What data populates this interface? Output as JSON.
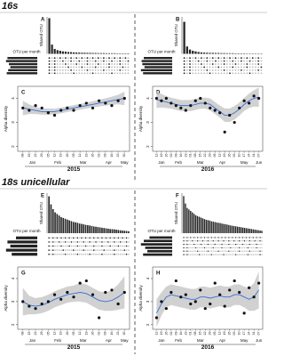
{
  "figure": {
    "sections": [
      "16s",
      "18s unicellular"
    ],
    "years": [
      "2015",
      "2016"
    ]
  },
  "chart_data": [
    {
      "type": "upset",
      "title": "A",
      "ylabel": "Shared OTU",
      "xlabel": "OTU per month",
      "ylim": [
        0,
        300
      ],
      "color": "#222222",
      "values": [
        290,
        75,
        40,
        30,
        25,
        20,
        18,
        15,
        14,
        12,
        11,
        10,
        9,
        9,
        8,
        8,
        7,
        7,
        6,
        6,
        6,
        5,
        5,
        5,
        5,
        4,
        4,
        4,
        4,
        4
      ],
      "set_values": [
        420,
        440,
        400,
        380,
        410,
        430
      ],
      "set_lim": [
        0,
        450
      ]
    },
    {
      "type": "upset",
      "title": "B",
      "ylabel": "Shared OTU",
      "xlabel": "OTU per month",
      "ylim": [
        0,
        300
      ],
      "color": "#222222",
      "values": [
        260,
        60,
        35,
        25,
        20,
        15,
        12,
        10,
        9,
        8,
        8,
        7,
        7,
        6,
        6,
        5,
        5,
        5,
        4,
        4,
        4,
        4,
        3,
        3,
        3,
        3,
        3,
        3
      ],
      "set_values": [
        400,
        430,
        420,
        390,
        440,
        410
      ],
      "set_lim": [
        0,
        450
      ]
    },
    {
      "type": "scatter",
      "title": "C",
      "ylabel": "Alpha diversity",
      "xlabel": "2015",
      "ylim": [
        1.8,
        4.5
      ],
      "yticks": [
        2,
        3,
        4
      ],
      "xlim": [
        -0.8,
        16.8
      ],
      "color": "#111111",
      "line_color": "#3b6fd4",
      "x": [
        0,
        1,
        2,
        3,
        4,
        5,
        6,
        7,
        8,
        9,
        10,
        11,
        12,
        13,
        14,
        15,
        16
      ],
      "values": [
        3.6,
        3.5,
        3.7,
        3.6,
        3.4,
        3.3,
        3.5,
        3.6,
        3.5,
        3.7,
        3.8,
        3.6,
        3.9,
        3.8,
        3.7,
        3.9,
        4.0
      ],
      "trend": [
        3.6,
        3.55,
        3.5,
        3.45,
        3.45,
        3.45,
        3.5,
        3.55,
        3.6,
        3.65,
        3.7,
        3.75,
        3.8,
        3.85,
        3.9,
        3.95,
        4.0
      ],
      "band_low": [
        3.3,
        3.35,
        3.35,
        3.32,
        3.32,
        3.33,
        3.38,
        3.43,
        3.48,
        3.53,
        3.58,
        3.62,
        3.66,
        3.7,
        3.73,
        3.75,
        3.72
      ],
      "band_high": [
        3.9,
        3.75,
        3.65,
        3.58,
        3.58,
        3.57,
        3.62,
        3.67,
        3.72,
        3.77,
        3.82,
        3.88,
        3.94,
        4.0,
        4.07,
        4.15,
        4.28
      ],
      "xticks": [
        {
          "value": 0,
          "label": "08"
        },
        {
          "value": 1,
          "label": "15"
        },
        {
          "value": 2,
          "label": "22"
        },
        {
          "value": 3,
          "label": "29"
        },
        {
          "value": 4,
          "label": "05"
        },
        {
          "value": 5,
          "label": "12"
        },
        {
          "value": 6,
          "label": "19"
        },
        {
          "value": 7,
          "label": "26"
        },
        {
          "value": 8,
          "label": "05"
        },
        {
          "value": 9,
          "label": "12"
        },
        {
          "value": 10,
          "label": "19"
        },
        {
          "value": 11,
          "label": "26"
        },
        {
          "value": 12,
          "label": "02"
        },
        {
          "value": 13,
          "label": "09"
        },
        {
          "value": 14,
          "label": "16"
        },
        {
          "value": 15,
          "label": "23"
        },
        {
          "value": 16,
          "label": "30"
        }
      ],
      "months": [
        {
          "value": 1.5,
          "label": "Jan"
        },
        {
          "value": 5.5,
          "label": "Feb"
        },
        {
          "value": 9.5,
          "label": "Mar"
        },
        {
          "value": 13.5,
          "label": "Apr"
        },
        {
          "value": 16,
          "label": "May"
        }
      ]
    },
    {
      "type": "scatter",
      "title": "D",
      "ylabel": "Alpha diversity",
      "xlabel": "2016",
      "ylim": [
        1.8,
        4.5
      ],
      "yticks": [
        2,
        3,
        4
      ],
      "xlim": [
        -0.8,
        21.8
      ],
      "color": "#111111",
      "line_color": "#3b6fd4",
      "x": [
        0,
        1,
        2,
        3,
        4,
        5,
        6,
        7,
        8,
        9,
        10,
        11,
        12,
        13,
        14,
        15,
        16,
        17,
        18,
        19,
        20,
        21
      ],
      "values": [
        4.0,
        3.9,
        4.0,
        3.8,
        3.7,
        3.6,
        3.5,
        3.7,
        3.9,
        4.0,
        3.8,
        3.6,
        3.5,
        3.4,
        2.6,
        3.3,
        3.0,
        3.6,
        3.9,
        3.8,
        4.1,
        4.0
      ],
      "trend": [
        3.95,
        3.9,
        3.85,
        3.8,
        3.75,
        3.7,
        3.7,
        3.7,
        3.75,
        3.8,
        3.8,
        3.75,
        3.6,
        3.45,
        3.3,
        3.3,
        3.4,
        3.55,
        3.75,
        3.9,
        4.0,
        4.05
      ],
      "band_low": [
        3.6,
        3.62,
        3.6,
        3.57,
        3.52,
        3.47,
        3.47,
        3.47,
        3.52,
        3.57,
        3.57,
        3.5,
        3.35,
        3.2,
        3.02,
        3.02,
        3.12,
        3.28,
        3.48,
        3.6,
        3.66,
        3.65
      ],
      "band_high": [
        4.3,
        4.18,
        4.1,
        4.03,
        3.98,
        3.93,
        3.93,
        3.93,
        3.98,
        4.03,
        4.03,
        4.0,
        3.85,
        3.7,
        3.58,
        3.58,
        3.68,
        3.82,
        4.02,
        4.2,
        4.34,
        4.45
      ],
      "xticks": [
        {
          "value": 0,
          "label": "12"
        },
        {
          "value": 1,
          "label": "19"
        },
        {
          "value": 2,
          "label": "26"
        },
        {
          "value": 3,
          "label": "02"
        },
        {
          "value": 4,
          "label": "09"
        },
        {
          "value": 5,
          "label": "16"
        },
        {
          "value": 6,
          "label": "23"
        },
        {
          "value": 7,
          "label": "01"
        },
        {
          "value": 8,
          "label": "08"
        },
        {
          "value": 9,
          "label": "15"
        },
        {
          "value": 10,
          "label": "22"
        },
        {
          "value": 11,
          "label": "29"
        },
        {
          "value": 12,
          "label": "05"
        },
        {
          "value": 13,
          "label": "12"
        },
        {
          "value": 14,
          "label": "19"
        },
        {
          "value": 15,
          "label": "26"
        },
        {
          "value": 16,
          "label": "03"
        },
        {
          "value": 17,
          "label": "10"
        },
        {
          "value": 18,
          "label": "17"
        },
        {
          "value": 19,
          "label": "24"
        },
        {
          "value": 20,
          "label": "31"
        },
        {
          "value": 21,
          "label": "07"
        }
      ],
      "months": [
        {
          "value": 1,
          "label": "Jan"
        },
        {
          "value": 4.5,
          "label": "Feb"
        },
        {
          "value": 9,
          "label": "Mar"
        },
        {
          "value": 13.5,
          "label": "Apr"
        },
        {
          "value": 18,
          "label": "May"
        },
        {
          "value": 21,
          "label": "Jun"
        }
      ]
    },
    {
      "type": "upset",
      "title": "E",
      "ylabel": "Shared OTU",
      "xlabel": "OTU per month",
      "ylim": [
        0,
        250
      ],
      "color": "#222222",
      "values": [
        230,
        180,
        150,
        130,
        120,
        110,
        100,
        95,
        90,
        85,
        80,
        75,
        70,
        68,
        65,
        60,
        58,
        55,
        52,
        50,
        48,
        45,
        42,
        40,
        38,
        36,
        34,
        32,
        30,
        28,
        26,
        25,
        24,
        22,
        20,
        18,
        16,
        15,
        14,
        12
      ],
      "set_values": [
        300,
        420,
        380,
        440,
        360
      ],
      "set_lim": [
        0,
        450
      ]
    },
    {
      "type": "upset",
      "title": "F",
      "ylabel": "Shared OTU",
      "xlabel": "OTU per month",
      "ylim": [
        0,
        270
      ],
      "color": "#222222",
      "values": [
        250,
        200,
        170,
        160,
        150,
        140,
        130,
        120,
        115,
        110,
        105,
        100,
        95,
        90,
        88,
        85,
        80,
        78,
        75,
        72,
        70,
        68,
        65,
        62,
        60,
        58,
        55,
        52,
        50,
        48,
        46,
        44,
        42,
        40,
        38,
        36,
        34,
        32,
        30,
        28,
        26,
        24,
        22,
        20,
        18,
        16
      ],
      "set_values": [
        320,
        400,
        440,
        380,
        350,
        410
      ],
      "set_lim": [
        0,
        450
      ]
    },
    {
      "type": "scatter",
      "title": "G",
      "ylabel": "Alpha diversity",
      "xlabel": "2015",
      "ylim": [
        1.8,
        4.5
      ],
      "yticks": [
        2,
        3,
        4
      ],
      "xlim": [
        -0.8,
        16.8
      ],
      "color": "#111111",
      "line_color": "#3b6fd4",
      "x": [
        0,
        1,
        2,
        3,
        4,
        5,
        6,
        7,
        8,
        9,
        10,
        11,
        12,
        13,
        14,
        15,
        16
      ],
      "values": [
        3.0,
        2.8,
        2.7,
        2.9,
        3.0,
        3.3,
        3.1,
        3.4,
        3.2,
        3.8,
        3.9,
        3.3,
        2.3,
        3.4,
        3.5,
        2.9,
        3.4
      ],
      "trend": [
        3.0,
        2.85,
        2.8,
        2.85,
        2.95,
        3.1,
        3.2,
        3.3,
        3.35,
        3.4,
        3.35,
        3.2,
        3.05,
        3.0,
        3.05,
        3.2,
        3.4
      ],
      "band_low": [
        2.4,
        2.45,
        2.45,
        2.5,
        2.6,
        2.75,
        2.85,
        2.95,
        3.0,
        3.0,
        2.95,
        2.8,
        2.65,
        2.6,
        2.6,
        2.65,
        2.7
      ],
      "band_high": [
        3.6,
        3.25,
        3.15,
        3.2,
        3.3,
        3.45,
        3.55,
        3.65,
        3.7,
        3.8,
        3.75,
        3.6,
        3.45,
        3.4,
        3.5,
        3.75,
        4.1
      ],
      "xticks": [
        {
          "value": 0,
          "label": "08"
        },
        {
          "value": 1,
          "label": "15"
        },
        {
          "value": 2,
          "label": "22"
        },
        {
          "value": 3,
          "label": "29"
        },
        {
          "value": 4,
          "label": "05"
        },
        {
          "value": 5,
          "label": "12"
        },
        {
          "value": 6,
          "label": "19"
        },
        {
          "value": 7,
          "label": "26"
        },
        {
          "value": 8,
          "label": "05"
        },
        {
          "value": 9,
          "label": "12"
        },
        {
          "value": 10,
          "label": "19"
        },
        {
          "value": 11,
          "label": "26"
        },
        {
          "value": 12,
          "label": "02"
        },
        {
          "value": 13,
          "label": "09"
        },
        {
          "value": 14,
          "label": "16"
        },
        {
          "value": 15,
          "label": "23"
        },
        {
          "value": 16,
          "label": "30"
        }
      ],
      "months": [
        {
          "value": 1.5,
          "label": "Jan"
        },
        {
          "value": 5.5,
          "label": "Feb"
        },
        {
          "value": 9.5,
          "label": "Mar"
        },
        {
          "value": 13.5,
          "label": "Apr"
        },
        {
          "value": 16,
          "label": "May"
        }
      ]
    },
    {
      "type": "scatter",
      "title": "H",
      "ylabel": "Alpha diversity",
      "xlabel": "2016",
      "ylim": [
        1.8,
        4.5
      ],
      "yticks": [
        2,
        3,
        4
      ],
      "xlim": [
        -0.8,
        21.8
      ],
      "color": "#111111",
      "line_color": "#3b6fd4",
      "x": [
        0,
        1,
        2,
        3,
        4,
        5,
        6,
        7,
        8,
        9,
        10,
        11,
        12,
        13,
        14,
        15,
        16,
        17,
        18,
        19,
        20,
        21
      ],
      "values": [
        2.3,
        3.0,
        2.7,
        3.4,
        3.9,
        3.2,
        3.3,
        2.9,
        3.0,
        3.5,
        2.7,
        2.9,
        3.8,
        3.3,
        2.8,
        3.5,
        3.9,
        3.4,
        2.5,
        3.6,
        3.2,
        3.8
      ],
      "trend": [
        2.5,
        2.9,
        3.2,
        3.3,
        3.25,
        3.2,
        3.15,
        3.1,
        3.1,
        3.2,
        3.2,
        3.15,
        3.2,
        3.25,
        3.2,
        3.2,
        3.3,
        3.3,
        3.2,
        3.1,
        3.2,
        3.5
      ],
      "band_low": [
        1.9,
        2.4,
        2.75,
        2.85,
        2.8,
        2.75,
        2.7,
        2.65,
        2.65,
        2.75,
        2.75,
        2.7,
        2.75,
        2.8,
        2.75,
        2.75,
        2.85,
        2.85,
        2.75,
        2.6,
        2.6,
        2.7
      ],
      "band_high": [
        3.1,
        3.4,
        3.65,
        3.75,
        3.7,
        3.65,
        3.6,
        3.55,
        3.55,
        3.65,
        3.65,
        3.6,
        3.65,
        3.7,
        3.65,
        3.65,
        3.75,
        3.75,
        3.65,
        3.6,
        3.8,
        4.3
      ],
      "xticks": [
        {
          "value": 0,
          "label": "12"
        },
        {
          "value": 1,
          "label": "19"
        },
        {
          "value": 2,
          "label": "26"
        },
        {
          "value": 3,
          "label": "02"
        },
        {
          "value": 4,
          "label": "09"
        },
        {
          "value": 5,
          "label": "16"
        },
        {
          "value": 6,
          "label": "23"
        },
        {
          "value": 7,
          "label": "01"
        },
        {
          "value": 8,
          "label": "08"
        },
        {
          "value": 9,
          "label": "15"
        },
        {
          "value": 10,
          "label": "22"
        },
        {
          "value": 11,
          "label": "29"
        },
        {
          "value": 12,
          "label": "05"
        },
        {
          "value": 13,
          "label": "12"
        },
        {
          "value": 14,
          "label": "19"
        },
        {
          "value": 15,
          "label": "26"
        },
        {
          "value": 16,
          "label": "03"
        },
        {
          "value": 17,
          "label": "10"
        },
        {
          "value": 18,
          "label": "17"
        },
        {
          "value": 19,
          "label": "24"
        },
        {
          "value": 20,
          "label": "31"
        },
        {
          "value": 21,
          "label": "07"
        }
      ],
      "months": [
        {
          "value": 1,
          "label": "Jan"
        },
        {
          "value": 4.5,
          "label": "Feb"
        },
        {
          "value": 9,
          "label": "Mar"
        },
        {
          "value": 13.5,
          "label": "Apr"
        },
        {
          "value": 18,
          "label": "May"
        },
        {
          "value": 21,
          "label": "Jun"
        }
      ]
    }
  ]
}
